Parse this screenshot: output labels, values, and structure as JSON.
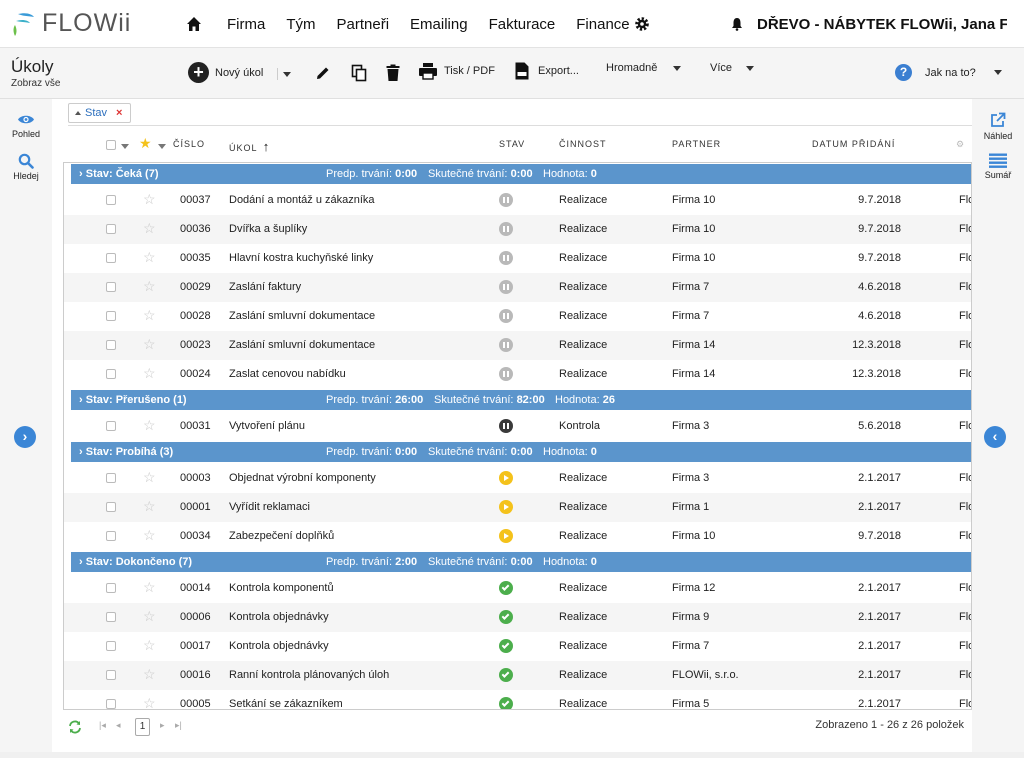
{
  "app": {
    "logo_text": "FLOWii",
    "company": "DŘEVO - NÁBYTEK FLOWii, Jana Fl..."
  },
  "nav": {
    "items": [
      {
        "label": "Firma"
      },
      {
        "label": "Tým"
      },
      {
        "label": "Partneři"
      },
      {
        "label": "Emailing"
      },
      {
        "label": "Fakturace"
      },
      {
        "label": "Finance"
      }
    ]
  },
  "toolbar": {
    "title": "Úkoly",
    "subtitle": "Zobraz vše",
    "new_task": "Nový úkol",
    "print_pdf": "Tisk / PDF",
    "export": "Export...",
    "bulk": "Hromadně",
    "more": "Více",
    "help": "Jak na to?",
    "help_glyph": "?"
  },
  "left_sidebar": {
    "view_label": "Pohled",
    "search_label": "Hledej"
  },
  "right_sidebar": {
    "preview_label": "Náhled",
    "summary_label": "Sumář"
  },
  "filter": {
    "chip_label": "Stav",
    "chip_remove": "×"
  },
  "columns": {
    "number": "ČÍSLO",
    "task": "ÚKOL",
    "status": "STAV",
    "activity": "ČINNOST",
    "partner": "PARTNER",
    "date_added": "DATUM PŘIDÁNÍ"
  },
  "groups": [
    {
      "name": "Stav: Čeká (7)",
      "planned_label": "Predp. trvání:",
      "planned": "0:00",
      "actual_label": "Skutečné trvání:",
      "actual": "0:00",
      "value_label": "Hodnota:",
      "value": "0",
      "rows": [
        {
          "num": "00037",
          "task": "Dodání a montáž u zákazníka",
          "status": "wait",
          "activity": "Realizace",
          "partner": "Firma 10",
          "date": "9.7.2018",
          "extra": "Flo"
        },
        {
          "num": "00036",
          "task": "Dvířka a šuplíky",
          "status": "wait",
          "activity": "Realizace",
          "partner": "Firma 10",
          "date": "9.7.2018",
          "extra": "Flo"
        },
        {
          "num": "00035",
          "task": "Hlavní kostra kuchyňské linky",
          "status": "wait",
          "activity": "Realizace",
          "partner": "Firma 10",
          "date": "9.7.2018",
          "extra": "Flo"
        },
        {
          "num": "00029",
          "task": "Zaslání faktury",
          "status": "wait",
          "activity": "Realizace",
          "partner": "Firma 7",
          "date": "4.6.2018",
          "extra": "Flo"
        },
        {
          "num": "00028",
          "task": "Zaslání smluvní dokumentace",
          "status": "wait",
          "activity": "Realizace",
          "partner": "Firma 7",
          "date": "4.6.2018",
          "extra": "Flo"
        },
        {
          "num": "00023",
          "task": "Zaslání smluvní dokumentace",
          "status": "wait",
          "activity": "Realizace",
          "partner": "Firma 14",
          "date": "12.3.2018",
          "extra": "Flo"
        },
        {
          "num": "00024",
          "task": "Zaslat cenovou nabídku",
          "status": "wait",
          "activity": "Realizace",
          "partner": "Firma 14",
          "date": "12.3.2018",
          "extra": "Flo"
        }
      ]
    },
    {
      "name": "Stav: Přerušeno (1)",
      "planned_label": "Predp. trvání:",
      "planned": "26:00",
      "actual_label": "Skutečné trvání:",
      "actual": "82:00",
      "value_label": "Hodnota:",
      "value": "26",
      "rows": [
        {
          "num": "00031",
          "task": "Vytvoření plánu",
          "status": "pause",
          "activity": "Kontrola",
          "partner": "Firma 3",
          "date": "5.6.2018",
          "extra": "Flo"
        }
      ]
    },
    {
      "name": "Stav: Probíhá (3)",
      "planned_label": "Predp. trvání:",
      "planned": "0:00",
      "actual_label": "Skutečné trvání:",
      "actual": "0:00",
      "value_label": "Hodnota:",
      "value": "0",
      "rows": [
        {
          "num": "00003",
          "task": "Objednat výrobní komponenty",
          "status": "run",
          "activity": "Realizace",
          "partner": "Firma 3",
          "date": "2.1.2017",
          "extra": "Flo"
        },
        {
          "num": "00001",
          "task": "Vyřídit reklamaci",
          "status": "run",
          "activity": "Realizace",
          "partner": "Firma 1",
          "date": "2.1.2017",
          "extra": "Flo"
        },
        {
          "num": "00034",
          "task": "Zabezpečení doplňků",
          "status": "run",
          "activity": "Realizace",
          "partner": "Firma 10",
          "date": "9.7.2018",
          "extra": "Flo"
        }
      ]
    },
    {
      "name": "Stav: Dokončeno (7)",
      "planned_label": "Predp. trvání:",
      "planned": "2:00",
      "actual_label": "Skutečné trvání:",
      "actual": "0:00",
      "value_label": "Hodnota:",
      "value": "0",
      "rows": [
        {
          "num": "00014",
          "task": "Kontrola komponentů",
          "status": "done",
          "activity": "Realizace",
          "partner": "Firma 12",
          "date": "2.1.2017",
          "extra": "Flo"
        },
        {
          "num": "00006",
          "task": "Kontrola objednávky",
          "status": "done",
          "activity": "Realizace",
          "partner": "Firma 9",
          "date": "2.1.2017",
          "extra": "Flo"
        },
        {
          "num": "00017",
          "task": "Kontrola objednávky",
          "status": "done",
          "activity": "Realizace",
          "partner": "Firma 7",
          "date": "2.1.2017",
          "extra": "Flo"
        },
        {
          "num": "00016",
          "task": "Ranní kontrola plánovaných úloh",
          "status": "done",
          "activity": "Realizace",
          "partner": "FLOWii, s.r.o.",
          "date": "2.1.2017",
          "extra": "Flo"
        },
        {
          "num": "00005",
          "task": "Setkání se zákazníkem",
          "status": "done",
          "activity": "Realizace",
          "partner": "Firma 5",
          "date": "2.1.2017",
          "extra": "Flo"
        }
      ]
    }
  ],
  "pager": {
    "page": "1",
    "summary": "Zobrazeno 1 - 26 z 26 položek"
  },
  "colors": {
    "group_bar": "#5b95cc",
    "accent": "#3b86d6",
    "wait": "#b9b9b9",
    "pause": "#3a3a3a",
    "run": "#f4c21b",
    "done": "#4cae4c"
  }
}
